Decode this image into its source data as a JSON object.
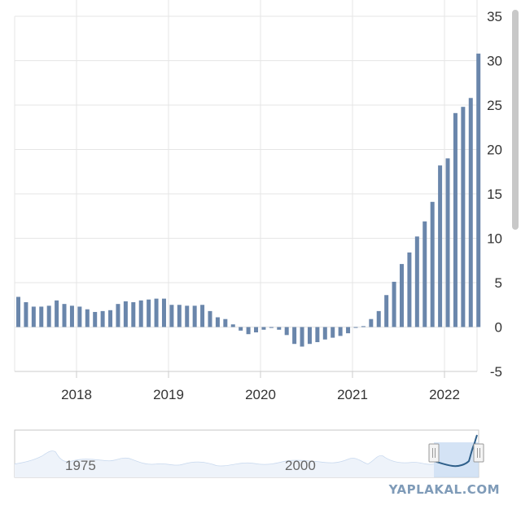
{
  "chart_data": {
    "type": "bar",
    "x_labels": [
      "2018",
      "2019",
      "2020",
      "2021",
      "2022"
    ],
    "y_ticks": [
      -5,
      0,
      5,
      10,
      15,
      20,
      25,
      30,
      35
    ],
    "ylim": [
      -5,
      35
    ],
    "grid": true,
    "legend": "none",
    "series": [
      {
        "values": [
          3.4,
          2.8,
          2.3,
          2.3,
          2.4,
          3.0,
          2.6,
          2.4,
          2.3,
          2.0,
          1.7,
          1.8,
          1.9,
          2.6,
          2.9,
          2.8,
          3.0,
          3.1,
          3.2,
          3.2,
          2.5,
          2.5,
          2.4,
          2.4,
          2.5,
          1.8,
          1.1,
          0.9,
          0.3,
          -0.4,
          -0.8,
          -0.6,
          -0.3,
          -0.1,
          -0.3,
          -0.9,
          -1.9,
          -2.2,
          -1.9,
          -1.7,
          -1.4,
          -1.2,
          -1.0,
          -0.7,
          0.0,
          0.1,
          0.9,
          1.8,
          3.6,
          5.1,
          7.1,
          8.4,
          10.2,
          11.9,
          14.1,
          18.2,
          19.0,
          24.1,
          24.8,
          25.8,
          30.8
        ],
        "color": "#6a86ab"
      }
    ]
  },
  "navigator": {
    "labels": [
      "1975",
      "2000"
    ],
    "series_color": "#c7d8ee",
    "selection_color": "#2e5f8a"
  },
  "watermark": "YAPLAKAL.COM"
}
